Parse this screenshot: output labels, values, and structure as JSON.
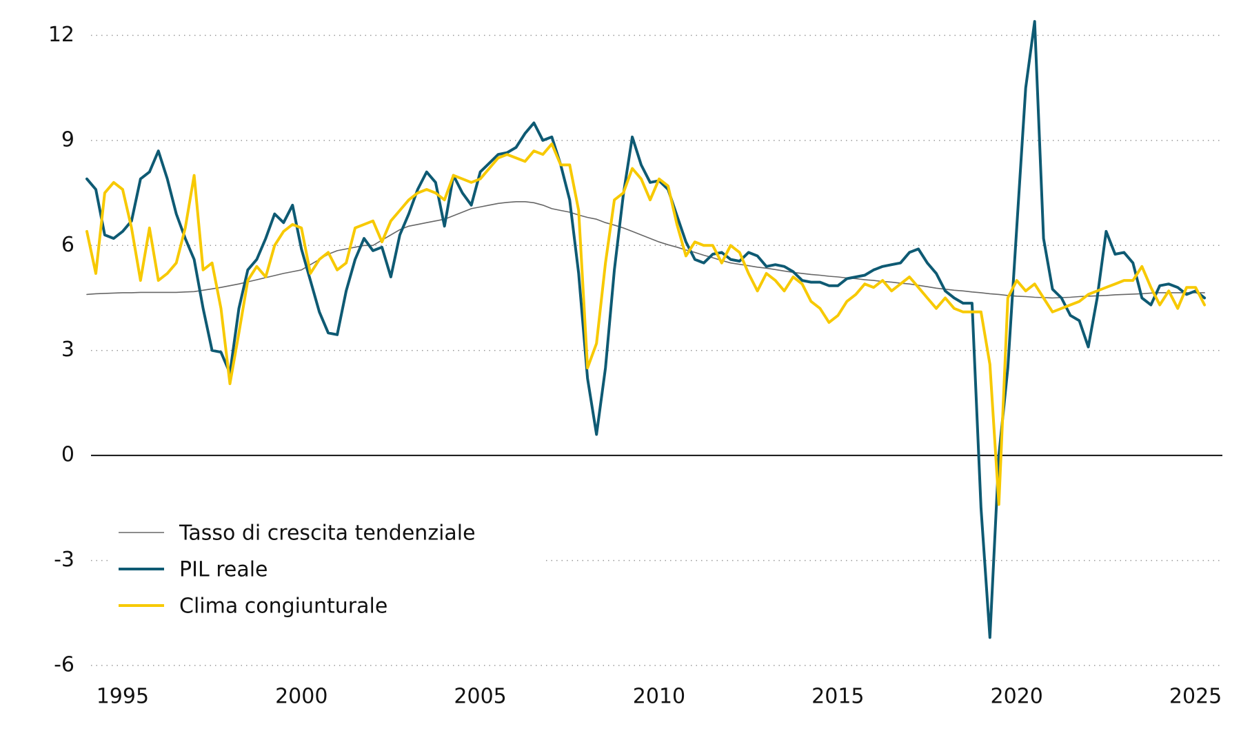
{
  "chart_data": {
    "type": "line",
    "x": [
      1994,
      1994.25,
      1994.5,
      1994.75,
      1995,
      1995.25,
      1995.5,
      1995.75,
      1996,
      1996.25,
      1996.5,
      1996.75,
      1997,
      1997.25,
      1997.5,
      1997.75,
      1998,
      1998.25,
      1998.5,
      1998.75,
      1999,
      1999.25,
      1999.5,
      1999.75,
      2000,
      2000.25,
      2000.5,
      2000.75,
      2001,
      2001.25,
      2001.5,
      2001.75,
      2002,
      2002.25,
      2002.5,
      2002.75,
      2003,
      2003.25,
      2003.5,
      2003.75,
      2004,
      2004.25,
      2004.5,
      2004.75,
      2005,
      2005.25,
      2005.5,
      2005.75,
      2006,
      2006.25,
      2006.5,
      2006.75,
      2007,
      2007.25,
      2007.5,
      2007.75,
      2008,
      2008.25,
      2008.5,
      2008.75,
      2009,
      2009.25,
      2009.5,
      2009.75,
      2010,
      2010.25,
      2010.5,
      2010.75,
      2011,
      2011.25,
      2011.5,
      2011.75,
      2012,
      2012.25,
      2012.5,
      2012.75,
      2013,
      2013.25,
      2013.5,
      2013.75,
      2014,
      2014.25,
      2014.5,
      2014.75,
      2015,
      2015.25,
      2015.5,
      2015.75,
      2016,
      2016.25,
      2016.5,
      2016.75,
      2017,
      2017.25,
      2017.5,
      2017.75,
      2018,
      2018.25,
      2018.5,
      2018.75,
      2019,
      2019.25,
      2019.5,
      2019.75,
      2020,
      2020.25,
      2020.5,
      2020.75,
      2021,
      2021.25,
      2021.5,
      2021.75,
      2022,
      2022.25,
      2022.5,
      2022.75,
      2023,
      2023.25,
      2023.5,
      2023.75,
      2024,
      2024.25,
      2024.5,
      2024.75,
      2025,
      2025.25
    ],
    "series": [
      {
        "name": "Tasso di crescita tendenziale",
        "color": "#666666",
        "values": [
          4.6,
          4.62,
          4.63,
          4.64,
          4.65,
          4.65,
          4.66,
          4.66,
          4.66,
          4.66,
          4.66,
          4.67,
          4.68,
          4.72,
          4.76,
          4.8,
          4.85,
          4.9,
          4.96,
          5.02,
          5.08,
          5.14,
          5.2,
          5.25,
          5.3,
          5.45,
          5.6,
          5.75,
          5.85,
          5.9,
          5.95,
          6.0,
          6.0,
          6.15,
          6.3,
          6.45,
          6.55,
          6.6,
          6.65,
          6.7,
          6.75,
          6.85,
          6.95,
          7.05,
          7.1,
          7.15,
          7.2,
          7.23,
          7.25,
          7.25,
          7.22,
          7.15,
          7.05,
          7.0,
          6.95,
          6.87,
          6.8,
          6.75,
          6.65,
          6.58,
          6.5,
          6.4,
          6.3,
          6.2,
          6.1,
          6.02,
          5.95,
          5.87,
          5.8,
          5.72,
          5.65,
          5.57,
          5.5,
          5.46,
          5.42,
          5.38,
          5.35,
          5.31,
          5.27,
          5.23,
          5.2,
          5.17,
          5.15,
          5.12,
          5.1,
          5.07,
          5.05,
          5.02,
          5.0,
          4.97,
          4.95,
          4.92,
          4.9,
          4.86,
          4.82,
          4.78,
          4.75,
          4.72,
          4.7,
          4.67,
          4.65,
          4.62,
          4.6,
          4.57,
          4.55,
          4.54,
          4.52,
          4.51,
          4.5,
          4.51,
          4.52,
          4.54,
          4.55,
          4.56,
          4.57,
          4.59,
          4.6,
          4.61,
          4.62,
          4.64,
          4.65,
          4.65,
          4.65,
          4.65,
          4.65,
          4.65
        ]
      },
      {
        "name": "PIL reale",
        "color": "#0e5a73",
        "values": [
          7.9,
          7.6,
          6.3,
          6.2,
          6.4,
          6.7,
          7.9,
          8.1,
          8.7,
          7.9,
          6.9,
          6.2,
          5.6,
          4.2,
          3.0,
          2.95,
          2.35,
          4.2,
          5.3,
          5.6,
          6.2,
          6.9,
          6.65,
          7.15,
          5.9,
          5.0,
          4.1,
          3.5,
          3.45,
          4.7,
          5.6,
          6.2,
          5.85,
          5.95,
          5.1,
          6.3,
          6.9,
          7.6,
          8.1,
          7.8,
          6.55,
          8.0,
          7.5,
          7.15,
          8.1,
          8.35,
          8.6,
          8.65,
          8.8,
          9.2,
          9.5,
          9.0,
          9.1,
          8.3,
          7.3,
          5.2,
          2.2,
          0.6,
          2.5,
          5.3,
          7.45,
          9.1,
          8.3,
          7.8,
          7.85,
          7.6,
          6.85,
          6.1,
          5.6,
          5.5,
          5.75,
          5.8,
          5.6,
          5.55,
          5.8,
          5.7,
          5.4,
          5.45,
          5.4,
          5.25,
          5.0,
          4.95,
          4.95,
          4.85,
          4.85,
          5.05,
          5.1,
          5.15,
          5.3,
          5.4,
          5.45,
          5.5,
          5.8,
          5.9,
          5.5,
          5.2,
          4.7,
          4.5,
          4.35,
          4.35,
          -1.5,
          -5.2,
          0.0,
          2.5,
          6.5,
          10.5,
          12.4,
          6.2,
          4.75,
          4.5,
          4.0,
          3.85,
          3.1,
          4.5,
          6.4,
          5.75,
          5.8,
          5.5,
          4.5,
          4.3,
          4.85,
          4.9,
          4.8,
          4.6,
          4.7,
          4.5
        ]
      },
      {
        "name": "Clima congiunturale",
        "color": "#f7c900",
        "values": [
          6.4,
          5.2,
          7.5,
          7.8,
          7.6,
          6.5,
          5.0,
          6.5,
          5.0,
          5.2,
          5.5,
          6.5,
          8.0,
          5.3,
          5.5,
          4.2,
          2.05,
          3.5,
          5.0,
          5.4,
          5.1,
          6.0,
          6.4,
          6.6,
          6.5,
          5.2,
          5.6,
          5.8,
          5.3,
          5.5,
          6.5,
          6.6,
          6.7,
          6.1,
          6.7,
          7.0,
          7.3,
          7.5,
          7.6,
          7.5,
          7.3,
          8.0,
          7.9,
          7.8,
          7.9,
          8.2,
          8.5,
          8.6,
          8.5,
          8.4,
          8.7,
          8.6,
          8.9,
          8.3,
          8.3,
          7.0,
          2.5,
          3.2,
          5.5,
          7.3,
          7.5,
          8.2,
          7.9,
          7.3,
          7.9,
          7.7,
          6.6,
          5.7,
          6.1,
          6.0,
          6.0,
          5.5,
          6.0,
          5.8,
          5.2,
          4.7,
          5.2,
          5.0,
          4.7,
          5.1,
          4.9,
          4.4,
          4.2,
          3.8,
          4.0,
          4.4,
          4.6,
          4.9,
          4.8,
          5.0,
          4.7,
          4.9,
          5.1,
          4.8,
          4.5,
          4.2,
          4.5,
          4.2,
          4.1,
          4.1,
          4.1,
          2.6,
          -1.4,
          4.5,
          5.0,
          4.7,
          4.9,
          4.5,
          4.1,
          4.2,
          4.3,
          4.4,
          4.6,
          4.7,
          4.8,
          4.9,
          5.0,
          5.0,
          5.4,
          4.8,
          4.3,
          4.7,
          4.2,
          4.8,
          4.8,
          4.3
        ]
      }
    ],
    "xlim": [
      1994,
      2025.75
    ],
    "xticks": [
      1995,
      2000,
      2005,
      2010,
      2015,
      2020,
      2025
    ],
    "ylim": [
      -6,
      12.5
    ],
    "yticks": [
      -6,
      -3,
      0,
      3,
      6,
      9,
      12
    ],
    "grid": true,
    "legend": "lower left"
  }
}
